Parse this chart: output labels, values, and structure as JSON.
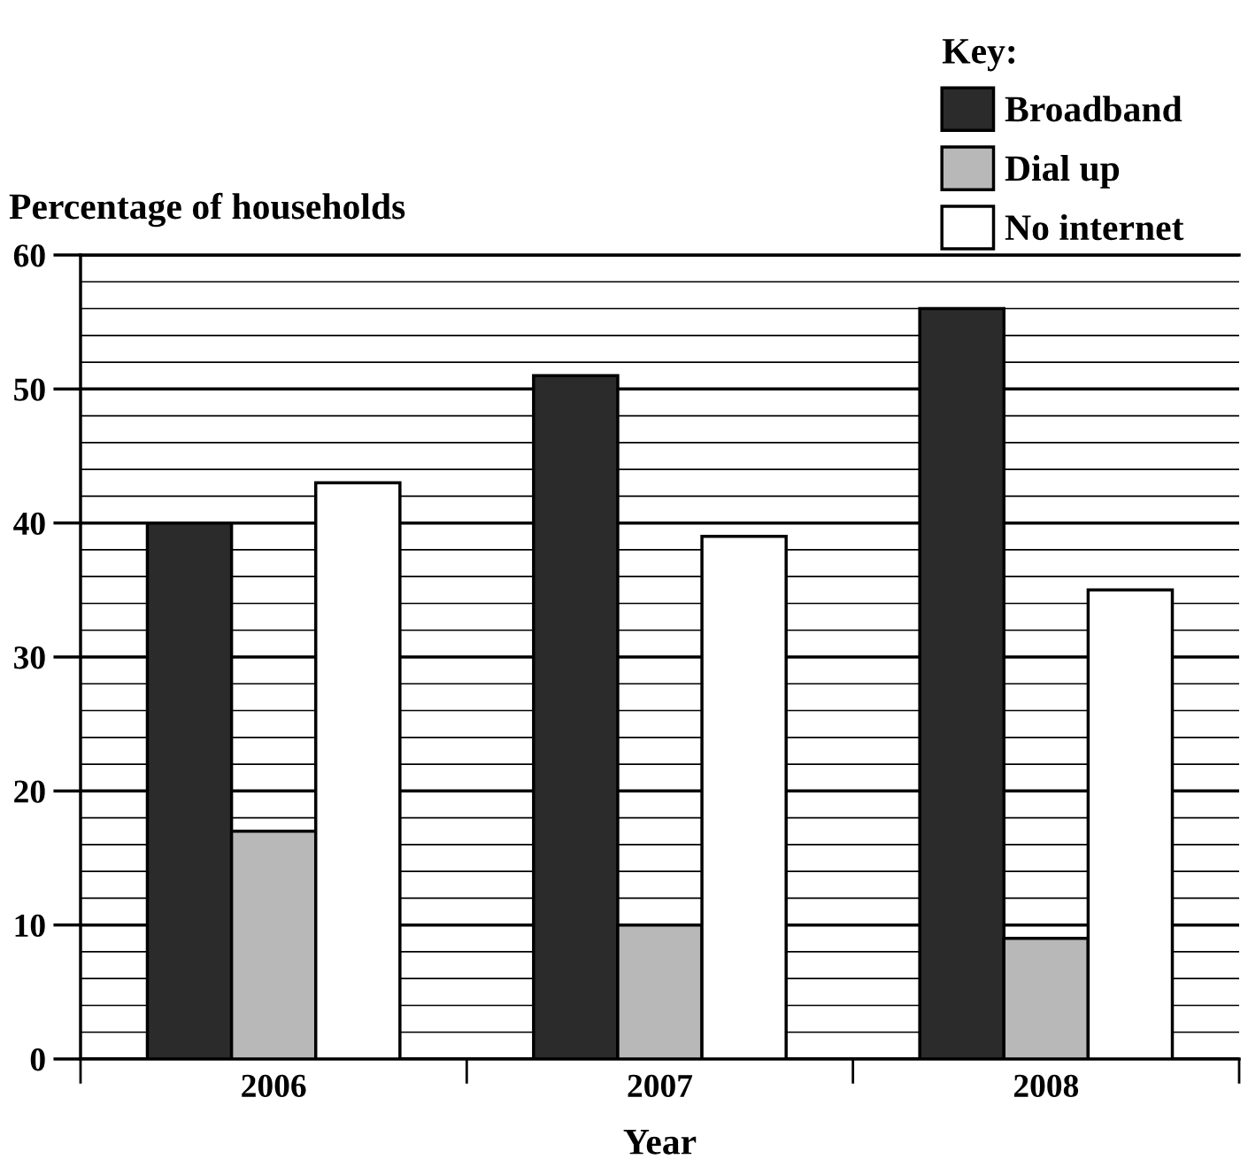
{
  "chart_data": {
    "type": "bar",
    "xlabel": "Year",
    "ylabel": "Percentage of households",
    "legend_title": "Key:",
    "legend": "top right",
    "categories": [
      "2006",
      "2007",
      "2008"
    ],
    "series": [
      {
        "name": "Broadband",
        "color": "#2b2b2b",
        "values": [
          40,
          51,
          56
        ]
      },
      {
        "name": "Dial up",
        "color": "#b8b8b8",
        "values": [
          17,
          10,
          9
        ]
      },
      {
        "name": "No internet",
        "color": "#ffffff",
        "values": [
          43,
          39,
          35
        ]
      }
    ],
    "ylim": [
      0,
      60
    ],
    "yticks": [
      0,
      {
        "value": 2,
        "label": null
      },
      {
        "value": 4,
        "label": null
      },
      {
        "value": 6,
        "label": null
      },
      {
        "value": 8,
        "label": null
      },
      10,
      {
        "value": 12,
        "label": null
      },
      {
        "value": 14,
        "label": null
      },
      {
        "value": 16,
        "label": null
      },
      {
        "value": 18,
        "label": null
      },
      20,
      {
        "value": 22,
        "label": null
      },
      {
        "value": 24,
        "label": null
      },
      {
        "value": 26,
        "label": null
      },
      {
        "value": 28,
        "label": null
      },
      30,
      {
        "value": 32,
        "label": null
      },
      {
        "value": 34,
        "label": null
      },
      {
        "value": 36,
        "label": null
      },
      {
        "value": 38,
        "label": null
      },
      40,
      {
        "value": 42,
        "label": null
      },
      {
        "value": 44,
        "label": null
      },
      {
        "value": 46,
        "label": null
      },
      {
        "value": 48,
        "label": null
      },
      50,
      {
        "value": 52,
        "label": null
      },
      {
        "value": 54,
        "label": null
      },
      {
        "value": 56,
        "label": null
      },
      {
        "value": 58,
        "label": null
      },
      60
    ],
    "grid": "y"
  }
}
